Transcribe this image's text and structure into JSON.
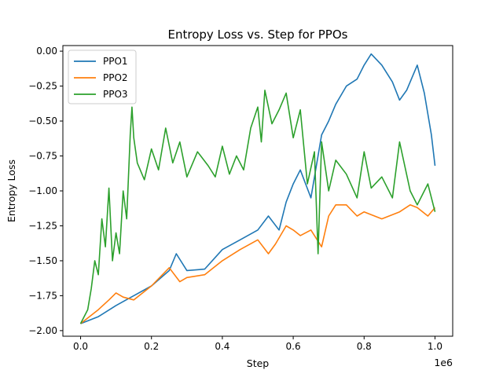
{
  "chart_data": {
    "type": "line",
    "title": "Entropy Loss vs. Step for PPOs",
    "xlabel": "Step",
    "ylabel": "Entropy Loss",
    "x_offset_label": "1e6",
    "xlim": [
      -0.05,
      1.05
    ],
    "ylim": [
      -2.04,
      0.04
    ],
    "xticks": [
      0.0,
      0.2,
      0.4,
      0.6,
      0.8,
      1.0
    ],
    "xtick_labels": [
      "0.0",
      "0.2",
      "0.4",
      "0.6",
      "0.8",
      "1.0"
    ],
    "yticks": [
      0.0,
      -0.25,
      -0.5,
      -0.75,
      -1.0,
      -1.25,
      -1.5,
      -1.75,
      -2.0
    ],
    "ytick_labels": [
      "0.00",
      "−0.25",
      "−0.50",
      "−0.75",
      "−1.00",
      "−1.25",
      "−1.50",
      "−1.75",
      "−2.00"
    ],
    "grid": false,
    "legend": "top-left",
    "series": [
      {
        "name": "PPO1",
        "color": "#1f77b4",
        "x": [
          0.0,
          0.05,
          0.1,
          0.15,
          0.2,
          0.25,
          0.27,
          0.3,
          0.35,
          0.4,
          0.45,
          0.5,
          0.53,
          0.56,
          0.58,
          0.6,
          0.62,
          0.65,
          0.68,
          0.7,
          0.72,
          0.75,
          0.78,
          0.8,
          0.82,
          0.85,
          0.88,
          0.9,
          0.92,
          0.95,
          0.97,
          0.99,
          1.0
        ],
        "y": [
          -1.95,
          -1.9,
          -1.82,
          -1.75,
          -1.68,
          -1.57,
          -1.45,
          -1.57,
          -1.56,
          -1.42,
          -1.35,
          -1.28,
          -1.18,
          -1.28,
          -1.08,
          -0.95,
          -0.85,
          -1.05,
          -0.6,
          -0.5,
          -0.38,
          -0.25,
          -0.2,
          -0.1,
          -0.02,
          -0.1,
          -0.22,
          -0.35,
          -0.28,
          -0.1,
          -0.3,
          -0.6,
          -0.82
        ]
      },
      {
        "name": "PPO2",
        "color": "#ff7f0e",
        "x": [
          0.0,
          0.05,
          0.08,
          0.1,
          0.12,
          0.15,
          0.2,
          0.25,
          0.28,
          0.3,
          0.35,
          0.4,
          0.45,
          0.5,
          0.53,
          0.55,
          0.58,
          0.6,
          0.62,
          0.65,
          0.68,
          0.7,
          0.72,
          0.75,
          0.78,
          0.8,
          0.85,
          0.9,
          0.93,
          0.95,
          0.98,
          1.0
        ],
        "y": [
          -1.95,
          -1.85,
          -1.78,
          -1.73,
          -1.76,
          -1.78,
          -1.68,
          -1.55,
          -1.65,
          -1.62,
          -1.6,
          -1.5,
          -1.42,
          -1.35,
          -1.45,
          -1.38,
          -1.25,
          -1.28,
          -1.32,
          -1.28,
          -1.4,
          -1.18,
          -1.1,
          -1.1,
          -1.18,
          -1.15,
          -1.2,
          -1.15,
          -1.1,
          -1.12,
          -1.18,
          -1.12
        ]
      },
      {
        "name": "PPO3",
        "color": "#2ca02c",
        "x": [
          0.0,
          0.02,
          0.03,
          0.04,
          0.05,
          0.06,
          0.07,
          0.08,
          0.09,
          0.1,
          0.11,
          0.12,
          0.13,
          0.14,
          0.145,
          0.15,
          0.16,
          0.18,
          0.2,
          0.22,
          0.24,
          0.26,
          0.28,
          0.3,
          0.33,
          0.36,
          0.38,
          0.4,
          0.42,
          0.44,
          0.46,
          0.48,
          0.5,
          0.51,
          0.52,
          0.54,
          0.56,
          0.58,
          0.6,
          0.62,
          0.64,
          0.66,
          0.67,
          0.68,
          0.7,
          0.72,
          0.75,
          0.78,
          0.8,
          0.82,
          0.85,
          0.88,
          0.9,
          0.93,
          0.95,
          0.98,
          1.0
        ],
        "y": [
          -1.95,
          -1.85,
          -1.7,
          -1.5,
          -1.6,
          -1.2,
          -1.4,
          -0.98,
          -1.5,
          -1.3,
          -1.45,
          -1.0,
          -1.2,
          -0.6,
          -0.4,
          -0.62,
          -0.8,
          -0.92,
          -0.7,
          -0.85,
          -0.55,
          -0.8,
          -0.65,
          -0.9,
          -0.72,
          -0.82,
          -0.9,
          -0.68,
          -0.88,
          -0.75,
          -0.85,
          -0.55,
          -0.4,
          -0.65,
          -0.28,
          -0.52,
          -0.42,
          -0.3,
          -0.62,
          -0.42,
          -0.95,
          -0.72,
          -1.45,
          -0.65,
          -1.0,
          -0.78,
          -0.88,
          -1.05,
          -0.72,
          -0.98,
          -0.9,
          -1.05,
          -0.65,
          -1.0,
          -1.1,
          -0.95,
          -1.15
        ]
      }
    ]
  }
}
